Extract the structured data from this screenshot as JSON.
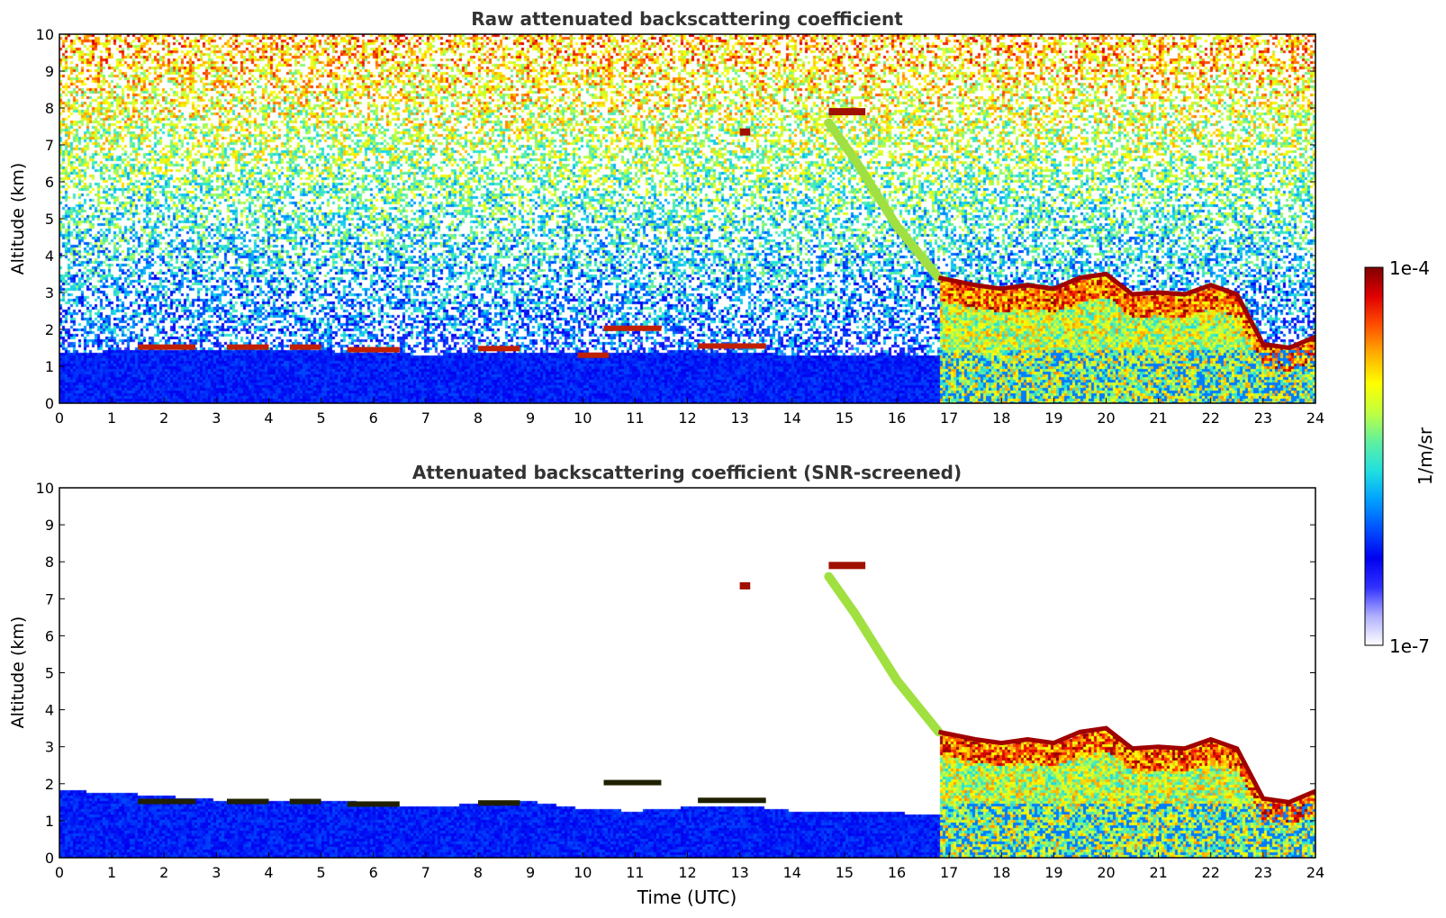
{
  "chart_data": [
    {
      "type": "heatmap",
      "title": "Raw attenuated backscattering coefficient",
      "xlabel": "",
      "ylabel": "Altitude (km)",
      "xlim": [
        0,
        24
      ],
      "ylim": [
        0,
        10
      ],
      "xticks": [
        "0",
        "1",
        "2",
        "3",
        "4",
        "5",
        "6",
        "7",
        "8",
        "9",
        "10",
        "11",
        "12",
        "13",
        "14",
        "15",
        "16",
        "17",
        "18",
        "19",
        "20",
        "21",
        "22",
        "23",
        "24"
      ],
      "yticks": [
        "0",
        "1",
        "2",
        "3",
        "4",
        "5",
        "6",
        "7",
        "8",
        "9",
        "10"
      ],
      "background": "noisy",
      "features": {
        "boundary_layer": [
          [
            0,
            1.4
          ],
          [
            1,
            1.45
          ],
          [
            2,
            1.5
          ],
          [
            3,
            1.5
          ],
          [
            4,
            1.5
          ],
          [
            5,
            1.45
          ],
          [
            6,
            1.4
          ],
          [
            7,
            1.35
          ],
          [
            8,
            1.4
          ],
          [
            9,
            1.4
          ],
          [
            10,
            1.4
          ],
          [
            11,
            1.4
          ],
          [
            12,
            1.45
          ],
          [
            13,
            1.4
          ],
          [
            14,
            1.35
          ],
          [
            15,
            1.35
          ],
          [
            16,
            1.35
          ],
          [
            16.8,
            1.3
          ]
        ],
        "low_clouds": [
          {
            "x": [
              1.5,
              2.6
            ],
            "y": 1.52
          },
          {
            "x": [
              3.2,
              4.0
            ],
            "y": 1.52
          },
          {
            "x": [
              4.4,
              5.0
            ],
            "y": 1.52
          },
          {
            "x": [
              5.5,
              6.5
            ],
            "y": 1.45
          },
          {
            "x": [
              8.0,
              8.8
            ],
            "y": 1.48
          },
          {
            "x": [
              10.4,
              11.5
            ],
            "y": 2.03
          },
          {
            "x": [
              9.9,
              10.5
            ],
            "y": 1.3
          },
          {
            "x": [
              12.2,
              13.5
            ],
            "y": 1.55
          }
        ],
        "high_clouds": [
          {
            "x": [
              14.7,
              15.4
            ],
            "y": 7.9
          },
          {
            "x": [
              13.0,
              13.2
            ],
            "y": 7.35
          }
        ],
        "falling_layer": [
          [
            14.7,
            7.6
          ],
          [
            15.2,
            6.6
          ],
          [
            15.6,
            5.7
          ],
          [
            16.0,
            4.8
          ],
          [
            16.4,
            4.1
          ],
          [
            16.8,
            3.4
          ]
        ],
        "cloud_top": [
          [
            16.8,
            3.4
          ],
          [
            17.5,
            3.2
          ],
          [
            18.0,
            3.1
          ],
          [
            18.5,
            3.2
          ],
          [
            19.0,
            3.1
          ],
          [
            19.5,
            3.4
          ],
          [
            20.0,
            3.5
          ],
          [
            20.5,
            2.95
          ],
          [
            21.0,
            3.0
          ],
          [
            21.5,
            2.95
          ],
          [
            22.0,
            3.2
          ],
          [
            22.5,
            2.95
          ],
          [
            23.0,
            1.6
          ],
          [
            23.5,
            1.5
          ],
          [
            24.0,
            1.8
          ]
        ]
      }
    },
    {
      "type": "heatmap",
      "title": "Attenuated backscattering coefficient (SNR-screened)",
      "xlabel": "Time (UTC)",
      "ylabel": "Altitude (km)",
      "xlim": [
        0,
        24
      ],
      "ylim": [
        0,
        10
      ],
      "xticks": [
        "0",
        "1",
        "2",
        "3",
        "4",
        "5",
        "6",
        "7",
        "8",
        "9",
        "10",
        "11",
        "12",
        "13",
        "14",
        "15",
        "16",
        "17",
        "18",
        "19",
        "20",
        "21",
        "22",
        "23",
        "24"
      ],
      "yticks": [
        "0",
        "1",
        "2",
        "3",
        "4",
        "5",
        "6",
        "7",
        "8",
        "9",
        "10"
      ],
      "background": "screened",
      "features": {
        "boundary_layer": [
          [
            0,
            1.85
          ],
          [
            1,
            1.8
          ],
          [
            2,
            1.7
          ],
          [
            3,
            1.6
          ],
          [
            4,
            1.55
          ],
          [
            5,
            1.6
          ],
          [
            6,
            1.5
          ],
          [
            7,
            1.4
          ],
          [
            8,
            1.5
          ],
          [
            9,
            1.55
          ],
          [
            10,
            1.35
          ],
          [
            11,
            1.3
          ],
          [
            12,
            1.4
          ],
          [
            13,
            1.45
          ],
          [
            14,
            1.3
          ],
          [
            15,
            1.25
          ],
          [
            16,
            1.25
          ],
          [
            16.8,
            1.2
          ]
        ],
        "low_clouds": [
          {
            "x": [
              1.5,
              2.6
            ],
            "y": 1.52
          },
          {
            "x": [
              3.2,
              4.0
            ],
            "y": 1.52
          },
          {
            "x": [
              4.4,
              5.0
            ],
            "y": 1.52
          },
          {
            "x": [
              5.5,
              6.5
            ],
            "y": 1.45
          },
          {
            "x": [
              8.0,
              8.8
            ],
            "y": 1.48
          },
          {
            "x": [
              10.4,
              11.5
            ],
            "y": 2.03
          },
          {
            "x": [
              12.2,
              13.5
            ],
            "y": 1.55
          }
        ],
        "high_clouds": [
          {
            "x": [
              14.7,
              15.4
            ],
            "y": 7.9
          },
          {
            "x": [
              13.0,
              13.2
            ],
            "y": 7.35
          }
        ],
        "falling_layer": [
          [
            14.7,
            7.6
          ],
          [
            15.2,
            6.6
          ],
          [
            15.6,
            5.7
          ],
          [
            16.0,
            4.8
          ],
          [
            16.4,
            4.1
          ],
          [
            16.8,
            3.4
          ]
        ],
        "cloud_top": [
          [
            16.8,
            3.4
          ],
          [
            17.5,
            3.2
          ],
          [
            18.0,
            3.1
          ],
          [
            18.5,
            3.2
          ],
          [
            19.0,
            3.1
          ],
          [
            19.5,
            3.4
          ],
          [
            20.0,
            3.5
          ],
          [
            20.5,
            2.95
          ],
          [
            21.0,
            3.0
          ],
          [
            21.5,
            2.95
          ],
          [
            22.0,
            3.2
          ],
          [
            22.5,
            2.95
          ],
          [
            23.0,
            1.6
          ],
          [
            23.5,
            1.5
          ],
          [
            24.0,
            1.8
          ]
        ]
      }
    }
  ],
  "colorbar": {
    "label": "1/m/sr",
    "max_label": "1e-4",
    "min_label": "1e-7",
    "scale": "log",
    "colors": [
      "#ffffff",
      "#b0b0ff",
      "#3030ff",
      "#0000f0",
      "#0050ff",
      "#00a0ff",
      "#20e0e0",
      "#60f0a0",
      "#c0ff40",
      "#ffff00",
      "#ffb000",
      "#ff5000",
      "#e00000",
      "#800000"
    ]
  }
}
